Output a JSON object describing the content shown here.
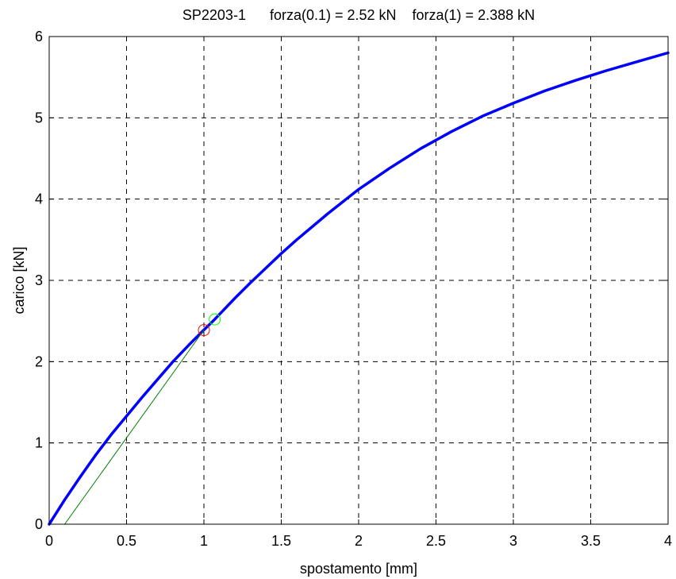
{
  "chart_data": {
    "type": "line",
    "title": "SP2203-1      forza(0.1) = 2.52 kN    forza(1) = 2.388 kN",
    "xlabel": "spostamento [mm]",
    "ylabel": "carico [kN]",
    "xlim": [
      0,
      4
    ],
    "ylim": [
      0,
      6
    ],
    "xticks": [
      0,
      0.5,
      1,
      1.5,
      2,
      2.5,
      3,
      3.5,
      4
    ],
    "xtick_labels": [
      "0",
      "0.5",
      "1",
      "1.5",
      "2",
      "2.5",
      "3",
      "3.5",
      "4"
    ],
    "yticks": [
      0,
      1,
      2,
      3,
      4,
      5,
      6
    ],
    "ytick_labels": [
      "0",
      "1",
      "2",
      "3",
      "4",
      "5",
      "6"
    ],
    "grid": true,
    "series": [
      {
        "color": "#0000ff",
        "style": "solid-thick",
        "x": [
          0,
          0.05,
          0.1,
          0.2,
          0.3,
          0.4,
          0.5,
          0.6,
          0.7,
          0.8,
          0.9,
          1.0,
          1.07,
          1.2,
          1.3,
          1.4,
          1.5,
          1.6,
          1.7,
          1.8,
          1.9,
          2.0,
          2.2,
          2.4,
          2.6,
          2.8,
          3.0,
          3.2,
          3.4,
          3.6,
          3.8,
          4.0
        ],
        "y": [
          0,
          0.15,
          0.3,
          0.58,
          0.85,
          1.1,
          1.33,
          1.56,
          1.78,
          2.0,
          2.2,
          2.39,
          2.52,
          2.78,
          2.97,
          3.15,
          3.33,
          3.5,
          3.66,
          3.82,
          3.97,
          4.12,
          4.38,
          4.62,
          4.83,
          5.02,
          5.18,
          5.33,
          5.46,
          5.58,
          5.69,
          5.8
        ]
      },
      {
        "color": "#008000",
        "style": "solid-thin",
        "x": [
          0.1,
          1.0
        ],
        "y": [
          0,
          2.39
        ]
      }
    ],
    "markers": [
      {
        "x": 1.0,
        "y": 2.388,
        "color": "#ff0000",
        "shape": "circle"
      },
      {
        "x": 1.07,
        "y": 2.52,
        "color": "#00ff00",
        "shape": "circle"
      }
    ]
  }
}
